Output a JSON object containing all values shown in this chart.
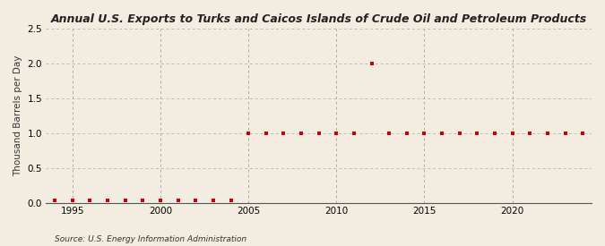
{
  "title": "Annual U.S. Exports to Turks and Caicos Islands of Crude Oil and Petroleum Products",
  "ylabel": "Thousand Barrels per Day",
  "source": "Source: U.S. Energy Information Administration",
  "background_color": "#f2ede0",
  "plot_background_color": "#f2ede0",
  "marker_color": "#cc0000",
  "hgrid_color": "#bbbbbb",
  "vgrid_color": "#aaaaaa",
  "xlim": [
    1993.5,
    2024.5
  ],
  "ylim": [
    0.0,
    2.5
  ],
  "yticks": [
    0.0,
    0.5,
    1.0,
    1.5,
    2.0,
    2.5
  ],
  "xticks": [
    1995,
    2000,
    2005,
    2010,
    2015,
    2020
  ],
  "years": [
    1994,
    1995,
    1996,
    1997,
    1998,
    1999,
    2000,
    2001,
    2002,
    2003,
    2004,
    2005,
    2006,
    2007,
    2008,
    2009,
    2010,
    2011,
    2012,
    2013,
    2014,
    2015,
    2016,
    2017,
    2018,
    2019,
    2020,
    2021,
    2022,
    2023,
    2024
  ],
  "values": [
    0.03,
    0.03,
    0.03,
    0.03,
    0.03,
    0.03,
    0.03,
    0.03,
    0.03,
    0.03,
    0.03,
    1.0,
    1.0,
    1.0,
    1.0,
    1.0,
    1.0,
    1.0,
    2.0,
    1.0,
    1.0,
    1.0,
    1.0,
    1.0,
    1.0,
    1.0,
    1.0,
    1.0,
    1.0,
    1.0,
    1.0
  ]
}
